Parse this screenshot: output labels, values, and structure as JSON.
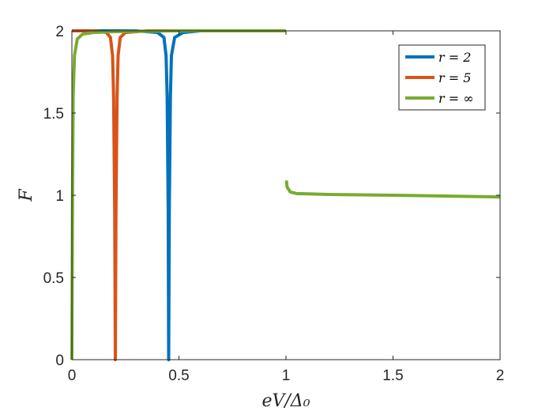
{
  "chart_data": {
    "type": "line",
    "title": "",
    "xlabel": "eV/Δ₀",
    "ylabel": "F",
    "xlim": [
      0,
      2
    ],
    "ylim": [
      0,
      2
    ],
    "xticks": [
      {
        "value": 0,
        "label": "0"
      },
      {
        "value": 0.5,
        "label": "0.5"
      },
      {
        "value": 1,
        "label": "1"
      },
      {
        "value": 1.5,
        "label": "1.5"
      },
      {
        "value": 2,
        "label": "2"
      }
    ],
    "yticks": [
      {
        "value": 0,
        "label": "0"
      },
      {
        "value": 0.5,
        "label": "0.5"
      },
      {
        "value": 1,
        "label": "1"
      },
      {
        "value": 1.5,
        "label": "1.5"
      },
      {
        "value": 2,
        "label": "2"
      }
    ],
    "grid": false,
    "legend_position": "top-right",
    "series": [
      {
        "name": "r = 2",
        "color": "#0072BD",
        "segments": [
          [
            [
              0,
              2
            ],
            [
              0.3,
              2
            ],
            [
              0.4,
              1.99
            ],
            [
              0.43,
              1.96
            ],
            [
              0.44,
              1.85
            ],
            [
              0.445,
              1.6
            ],
            [
              0.45,
              0.9
            ],
            [
              0.452,
              0
            ],
            [
              0.455,
              0.9
            ],
            [
              0.46,
              1.6
            ],
            [
              0.465,
              1.85
            ],
            [
              0.48,
              1.96
            ],
            [
              0.52,
              1.99
            ],
            [
              0.6,
              2
            ],
            [
              1,
              2
            ]
          ]
        ]
      },
      {
        "name": "r = 5",
        "color": "#D95319",
        "segments": [
          [
            [
              0,
              2
            ],
            [
              0.1,
              2
            ],
            [
              0.16,
              1.99
            ],
            [
              0.18,
              1.96
            ],
            [
              0.19,
              1.85
            ],
            [
              0.195,
              1.6
            ],
            [
              0.2,
              0.9
            ],
            [
              0.203,
              0
            ],
            [
              0.206,
              0.9
            ],
            [
              0.211,
              1.6
            ],
            [
              0.216,
              1.85
            ],
            [
              0.226,
              1.96
            ],
            [
              0.25,
              1.99
            ],
            [
              0.35,
              2
            ],
            [
              1,
              2
            ]
          ]
        ]
      },
      {
        "name": "r = ∞",
        "color": "#77AC30",
        "segments": [
          [
            [
              0,
              0
            ],
            [
              0.003,
              1.0
            ],
            [
              0.006,
              1.6
            ],
            [
              0.012,
              1.85
            ],
            [
              0.025,
              1.95
            ],
            [
              0.05,
              1.98
            ],
            [
              0.1,
              1.99
            ],
            [
              0.2,
              1.995
            ],
            [
              0.5,
              2
            ],
            [
              1,
              2
            ]
          ],
          [
            [
              1.002,
              1.09
            ],
            [
              1.005,
              1.05
            ],
            [
              1.02,
              1.02
            ],
            [
              1.05,
              1.01
            ],
            [
              1.2,
              1.005
            ],
            [
              1.5,
              1.0
            ],
            [
              2,
              0.99
            ]
          ]
        ]
      }
    ]
  }
}
